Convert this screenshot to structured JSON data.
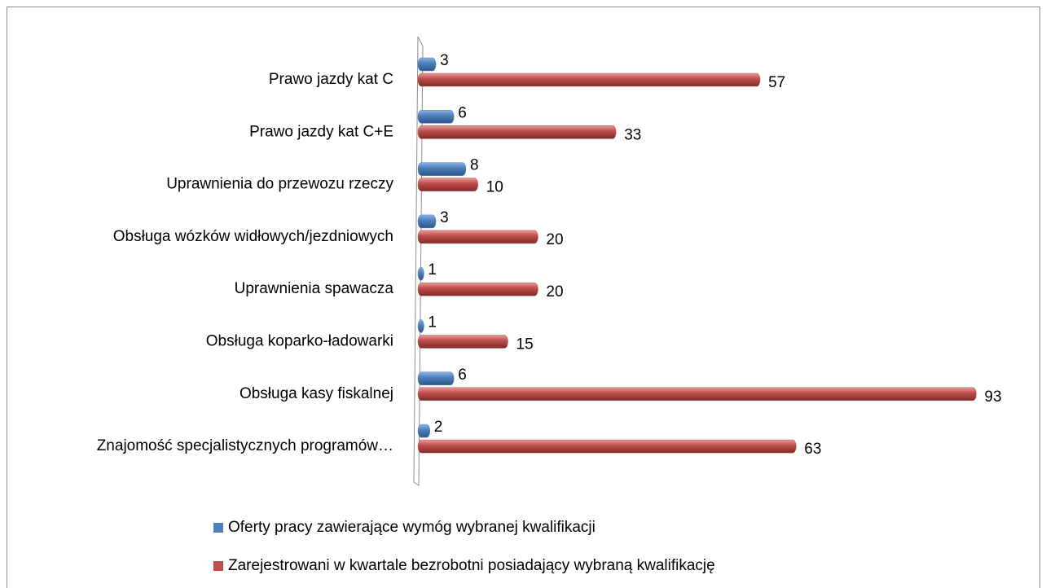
{
  "chart_data": {
    "type": "bar",
    "orientation": "horizontal",
    "categories": [
      "Prawo jazdy kat C",
      "Prawo jazdy kat C+E",
      "Uprawnienia do przewozu rzeczy",
      "Obsługa wózków widłowych/jezdniowych",
      "Uprawnienia spawacza",
      "Obsługa koparko-ładowarki",
      "Obsługa kasy fiskalnej",
      "Znajomość specjalistycznych programów…"
    ],
    "series": [
      {
        "name": "Oferty pracy zawierające wymóg wybranej kwalifikacji",
        "color": "#4f81bd",
        "values": [
          3,
          6,
          8,
          3,
          1,
          1,
          6,
          2
        ]
      },
      {
        "name": "Zarejestrowani w kwartale bezrobotni posiadający wybraną kwalifikację",
        "color": "#c0504d",
        "values": [
          57,
          33,
          10,
          20,
          20,
          15,
          93,
          63
        ]
      }
    ],
    "xlim": [
      0,
      100
    ],
    "legend": "bottom"
  }
}
